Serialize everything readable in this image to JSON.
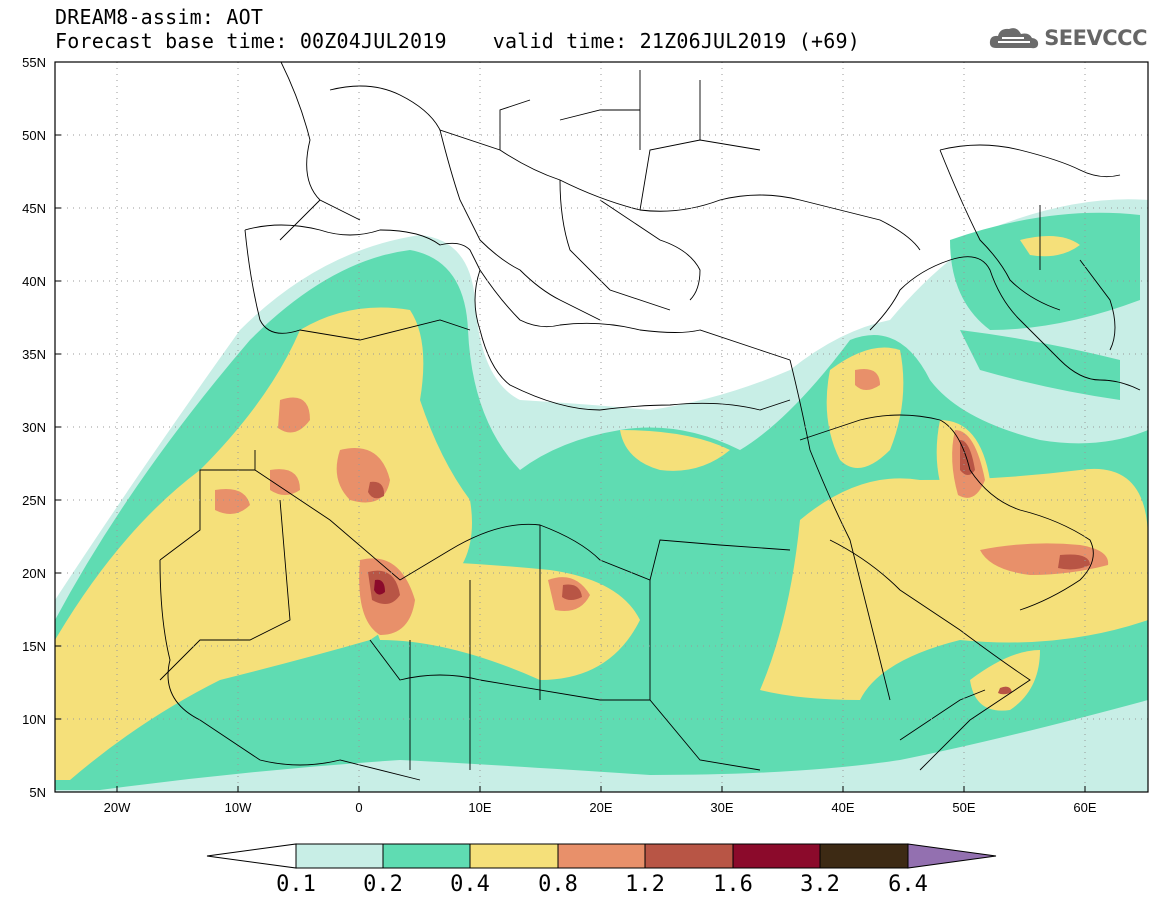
{
  "header": {
    "title": "DREAM8-assim: AOT",
    "base_time_label": "Forecast base time: 00Z04JUL2019",
    "valid_time_label": "valid time: 21Z06JUL2019 (+69)"
  },
  "logo": {
    "icon": "cloud-icon",
    "text": "SEEVCCC"
  },
  "map": {
    "lon_range": [
      -25,
      65
    ],
    "lat_range": [
      5,
      55
    ],
    "lon_ticks": [
      "20W",
      "10W",
      "0",
      "10E",
      "20E",
      "30E",
      "40E",
      "50E",
      "60E"
    ],
    "lat_ticks": [
      "55N",
      "50N",
      "45N",
      "40N",
      "35N",
      "30N",
      "25N",
      "20N",
      "15N",
      "10N",
      "5N"
    ]
  },
  "colorbar": {
    "labels": [
      "0.1",
      "0.2",
      "0.4",
      "0.8",
      "1.2",
      "1.6",
      "3.2",
      "6.4"
    ],
    "colors": [
      "#ffffff",
      "#c8eee6",
      "#5fdcb2",
      "#f5e07a",
      "#e8906a",
      "#b85545",
      "#8b0a2b",
      "#3d2a14",
      "#9370b0"
    ]
  }
}
